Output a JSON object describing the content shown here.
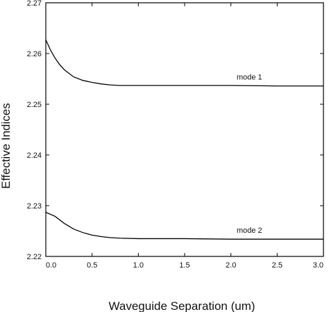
{
  "chart_data": {
    "type": "line",
    "xlabel": "Waveguide Separation (um)",
    "ylabel": "Effective Indices",
    "xlim": [
      0.0,
      3.0
    ],
    "ylim": [
      2.22,
      2.27
    ],
    "xticks": [
      "0.0",
      "0.5",
      "1.0",
      "1.5",
      "2.0",
      "2.5",
      "3.0"
    ],
    "yticks": [
      "2.22",
      "2.23",
      "2.24",
      "2.25",
      "2.26",
      "2.27"
    ],
    "grid": false,
    "series": [
      {
        "name": "mode 1",
        "x": [
          0.0,
          0.05,
          0.1,
          0.15,
          0.2,
          0.3,
          0.4,
          0.5,
          0.6,
          0.7,
          0.8,
          1.0,
          1.5,
          2.0,
          2.5,
          3.0
        ],
        "y": [
          2.2627,
          2.2607,
          2.2591,
          2.2578,
          2.2568,
          2.2554,
          2.2547,
          2.2543,
          2.254,
          2.2538,
          2.2537,
          2.2537,
          2.2537,
          2.2537,
          2.2536,
          2.2536
        ]
      },
      {
        "name": "mode 2",
        "x": [
          0.0,
          0.1,
          0.2,
          0.3,
          0.4,
          0.5,
          0.6,
          0.7,
          0.8,
          1.0,
          1.5,
          2.0,
          2.5,
          3.0
        ],
        "y": [
          2.2287,
          2.2279,
          2.2265,
          2.2254,
          2.2247,
          2.2242,
          2.2239,
          2.2237,
          2.2236,
          2.2235,
          2.2235,
          2.2234,
          2.2234,
          2.2234
        ]
      }
    ]
  }
}
